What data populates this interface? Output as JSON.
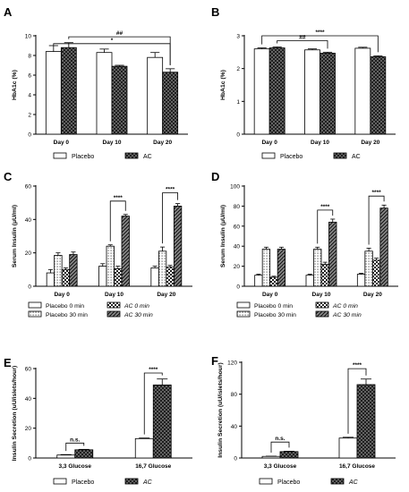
{
  "chart_data": [
    {
      "panel": "A",
      "type": "bar",
      "categories": [
        "Day 0",
        "Day 10",
        "Day 20"
      ],
      "series": [
        {
          "name": "Placebo",
          "values": [
            8.4,
            8.3,
            7.8
          ],
          "errors": [
            0.6,
            0.35,
            0.5
          ]
        },
        {
          "name": "AC",
          "values": [
            8.8,
            6.9,
            6.3
          ],
          "errors": [
            0.5,
            0.1,
            0.35
          ]
        }
      ],
      "ylabel": "HbA1c (%)",
      "ylim": [
        0,
        10
      ],
      "yticks": [
        0,
        2,
        4,
        6,
        8,
        10
      ],
      "significance": [
        {
          "text": "##",
          "from": {
            "cat": 0,
            "series": 1
          },
          "to": {
            "cat": 2,
            "series": 1
          },
          "y": 9.9
        },
        {
          "text": "*",
          "from": {
            "cat": 0,
            "series": 0
          },
          "to": {
            "cat": 2,
            "series": 1
          },
          "y": 9.2
        }
      ],
      "legend": [
        "Placebo",
        "AC"
      ]
    },
    {
      "panel": "B",
      "type": "bar",
      "categories": [
        "Day 0",
        "Day 10",
        "Day 20"
      ],
      "series": [
        {
          "name": "Placebo",
          "values": [
            2.6,
            2.57,
            2.62
          ],
          "errors": [
            0.03,
            0.03,
            0.03
          ]
        },
        {
          "name": "AC",
          "values": [
            2.63,
            2.47,
            2.36
          ],
          "errors": [
            0.03,
            0.03,
            0.03
          ]
        }
      ],
      "ylabel": "HbA1c (%)",
      "ylim": [
        0,
        3
      ],
      "yticks": [
        0,
        1,
        2,
        3
      ],
      "significance": [
        {
          "text": "****",
          "from": {
            "cat": 0,
            "series": 0
          },
          "to": {
            "cat": 2,
            "series": 1
          },
          "y": 3.0
        },
        {
          "text": "##",
          "from": {
            "cat": 0,
            "series": 1
          },
          "to": {
            "cat": 1,
            "series": 1
          },
          "y": 2.85
        }
      ],
      "legend": [
        "Placebo",
        "AC"
      ]
    },
    {
      "panel": "C",
      "type": "bar",
      "categories": [
        "Day 0",
        "Day 10",
        "Day 20"
      ],
      "series": [
        {
          "name": "Placebo 0 min",
          "values": [
            8,
            12,
            11
          ],
          "errors": [
            2,
            1.5,
            1
          ]
        },
        {
          "name": "Placebo 30 min",
          "values": [
            18.5,
            24,
            21
          ],
          "errors": [
            1.5,
            0.8,
            2.5
          ]
        },
        {
          "name": "AC 0 min",
          "values": [
            10,
            10.5,
            11.5
          ],
          "errors": [
            1,
            1.5,
            1
          ]
        },
        {
          "name": "AC 30 min",
          "values": [
            19,
            42,
            48
          ],
          "errors": [
            1.5,
            1,
            1.5
          ]
        }
      ],
      "ylabel": "Serum Insulin (μU/ml)",
      "ylim": [
        0,
        60
      ],
      "yticks": [
        0,
        20,
        40,
        60
      ],
      "significance": [
        {
          "text": "****",
          "from": {
            "cat": 1,
            "series": 1
          },
          "to": {
            "cat": 1,
            "series": 3
          },
          "y": 51
        },
        {
          "text": "****",
          "from": {
            "cat": 2,
            "series": 1
          },
          "to": {
            "cat": 2,
            "series": 3
          },
          "y": 56
        }
      ],
      "legend": [
        "Placebo 0 min",
        "Placebo 30 min",
        "AC 0 min",
        "AC 30 min"
      ]
    },
    {
      "panel": "D",
      "type": "bar",
      "categories": [
        "Day 0",
        "Day 10",
        "Day 20"
      ],
      "series": [
        {
          "name": "Placebo 0 min",
          "values": [
            11,
            11,
            12
          ],
          "errors": [
            1,
            1,
            1
          ]
        },
        {
          "name": "Placebo 30 min",
          "values": [
            37,
            37,
            35
          ],
          "errors": [
            2,
            2,
            3
          ]
        },
        {
          "name": "AC 0 min",
          "values": [
            9,
            22,
            26
          ],
          "errors": [
            1,
            2,
            2
          ]
        },
        {
          "name": "AC 30 min",
          "values": [
            37,
            64,
            78
          ],
          "errors": [
            2,
            3,
            3
          ]
        }
      ],
      "ylabel": "Serum Insulin (μU/ml)",
      "ylim": [
        0,
        100
      ],
      "yticks": [
        0,
        20,
        40,
        60,
        80,
        100
      ],
      "significance": [
        {
          "text": "****",
          "from": {
            "cat": 1,
            "series": 1
          },
          "to": {
            "cat": 1,
            "series": 3
          },
          "y": 76
        },
        {
          "text": "****",
          "from": {
            "cat": 2,
            "series": 1
          },
          "to": {
            "cat": 2,
            "series": 3
          },
          "y": 90
        }
      ],
      "legend": [
        "Placebo 0 min",
        "Placebo 30 min",
        "AC 0 min",
        "AC 30 min"
      ]
    },
    {
      "panel": "E",
      "type": "bar",
      "categories": [
        "3,3 Glucose",
        "16,7 Glucose"
      ],
      "series": [
        {
          "name": "Placebo",
          "values": [
            2,
            13
          ],
          "errors": [
            0.3,
            0.4
          ]
        },
        {
          "name": "AC",
          "values": [
            5.5,
            49
          ],
          "errors": [
            0.3,
            4
          ]
        }
      ],
      "ylabel": "Insulin Secretion (uU/islets/hour)",
      "ylim": [
        0,
        60
      ],
      "yticks": [
        0,
        20,
        40,
        60
      ],
      "significance": [
        {
          "text": "n.s.",
          "from": {
            "cat": 0,
            "series": 0
          },
          "to": {
            "cat": 0,
            "series": 1
          },
          "y": 10
        },
        {
          "text": "****",
          "from": {
            "cat": 1,
            "series": 0
          },
          "to": {
            "cat": 1,
            "series": 1
          },
          "y": 57
        }
      ],
      "legend": [
        "Placebo",
        "AC"
      ]
    },
    {
      "panel": "F",
      "type": "bar",
      "categories": [
        "3,3 Glucose",
        "16,7 Glucose"
      ],
      "series": [
        {
          "name": "Placebo",
          "values": [
            2,
            25
          ],
          "errors": [
            0.3,
            1
          ]
        },
        {
          "name": "AC",
          "values": [
            8,
            92
          ],
          "errors": [
            0.5,
            7
          ]
        }
      ],
      "ylabel": "Insulin Secretion (uU/islets/hour)",
      "ylim": [
        0,
        120
      ],
      "yticks": [
        0,
        40,
        80,
        120
      ],
      "significance": [
        {
          "text": "n.s.",
          "from": {
            "cat": 0,
            "series": 0
          },
          "to": {
            "cat": 0,
            "series": 1
          },
          "y": 20
        },
        {
          "text": "****",
          "from": {
            "cat": 1,
            "series": 0
          },
          "to": {
            "cat": 1,
            "series": 1
          },
          "y": 112
        }
      ],
      "legend": [
        "Placebo",
        "AC"
      ]
    }
  ]
}
